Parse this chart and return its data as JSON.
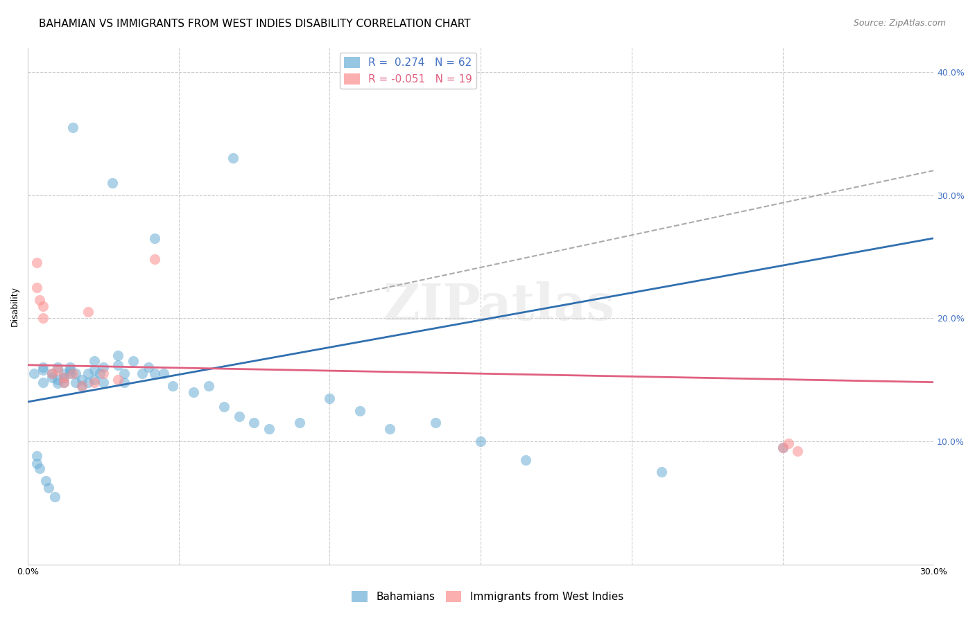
{
  "title": "BAHAMIAN VS IMMIGRANTS FROM WEST INDIES DISABILITY CORRELATION CHART",
  "source": "Source: ZipAtlas.com",
  "ylabel": "Disability",
  "xlim": [
    0.0,
    0.3
  ],
  "ylim": [
    0.0,
    0.42
  ],
  "x_ticks": [
    0.0,
    0.05,
    0.1,
    0.15,
    0.2,
    0.25,
    0.3
  ],
  "y_ticks": [
    0.0,
    0.1,
    0.2,
    0.3,
    0.4
  ],
  "y_tick_labels": [
    "",
    "10.0%",
    "20.0%",
    "30.0%",
    "40.0%"
  ],
  "watermark": "ZIPatlas",
  "blue_scatter_x": [
    0.015,
    0.028,
    0.068,
    0.002,
    0.005,
    0.005,
    0.005,
    0.008,
    0.008,
    0.01,
    0.01,
    0.01,
    0.012,
    0.012,
    0.012,
    0.014,
    0.014,
    0.014,
    0.016,
    0.016,
    0.018,
    0.018,
    0.02,
    0.02,
    0.022,
    0.022,
    0.022,
    0.024,
    0.025,
    0.025,
    0.03,
    0.03,
    0.032,
    0.032,
    0.035,
    0.038,
    0.04,
    0.042,
    0.042,
    0.045,
    0.048,
    0.055,
    0.06,
    0.065,
    0.07,
    0.075,
    0.08,
    0.09,
    0.1,
    0.11,
    0.12,
    0.135,
    0.15,
    0.165,
    0.21,
    0.25,
    0.003,
    0.003,
    0.004,
    0.006,
    0.007,
    0.009
  ],
  "blue_scatter_y": [
    0.355,
    0.31,
    0.33,
    0.155,
    0.158,
    0.16,
    0.148,
    0.155,
    0.152,
    0.15,
    0.16,
    0.147,
    0.155,
    0.148,
    0.152,
    0.155,
    0.158,
    0.16,
    0.155,
    0.148,
    0.15,
    0.145,
    0.155,
    0.148,
    0.165,
    0.158,
    0.15,
    0.155,
    0.16,
    0.148,
    0.17,
    0.162,
    0.155,
    0.148,
    0.165,
    0.155,
    0.16,
    0.265,
    0.155,
    0.155,
    0.145,
    0.14,
    0.145,
    0.128,
    0.12,
    0.115,
    0.11,
    0.115,
    0.135,
    0.125,
    0.11,
    0.115,
    0.1,
    0.085,
    0.075,
    0.095,
    0.088,
    0.082,
    0.078,
    0.068,
    0.062,
    0.055
  ],
  "pink_scatter_x": [
    0.003,
    0.003,
    0.004,
    0.005,
    0.005,
    0.008,
    0.01,
    0.012,
    0.012,
    0.015,
    0.018,
    0.02,
    0.022,
    0.025,
    0.03,
    0.042,
    0.25,
    0.252,
    0.255
  ],
  "pink_scatter_y": [
    0.245,
    0.225,
    0.215,
    0.21,
    0.2,
    0.155,
    0.158,
    0.152,
    0.148,
    0.155,
    0.145,
    0.205,
    0.148,
    0.155,
    0.15,
    0.248,
    0.095,
    0.098,
    0.092
  ],
  "blue_line_x": [
    0.0,
    0.3
  ],
  "blue_line_y": [
    0.132,
    0.265
  ],
  "pink_line_x": [
    0.0,
    0.3
  ],
  "pink_line_y": [
    0.162,
    0.148
  ],
  "dashed_line_x": [
    0.1,
    0.3
  ],
  "dashed_line_y": [
    0.215,
    0.32
  ],
  "scatter_size": 120,
  "scatter_alpha": 0.55,
  "blue_color": "#6baed6",
  "pink_color": "#fc8d8d",
  "blue_line_color": "#3070b0",
  "pink_line_color": "#e06080",
  "dashed_color": "#aaaaaa",
  "grid_color": "#cccccc",
  "title_fontsize": 11,
  "axis_label_fontsize": 9,
  "tick_fontsize": 9,
  "source_fontsize": 9,
  "right_tick_color_blue": "#4472c4",
  "right_tick_color_pink": "#c0504d"
}
